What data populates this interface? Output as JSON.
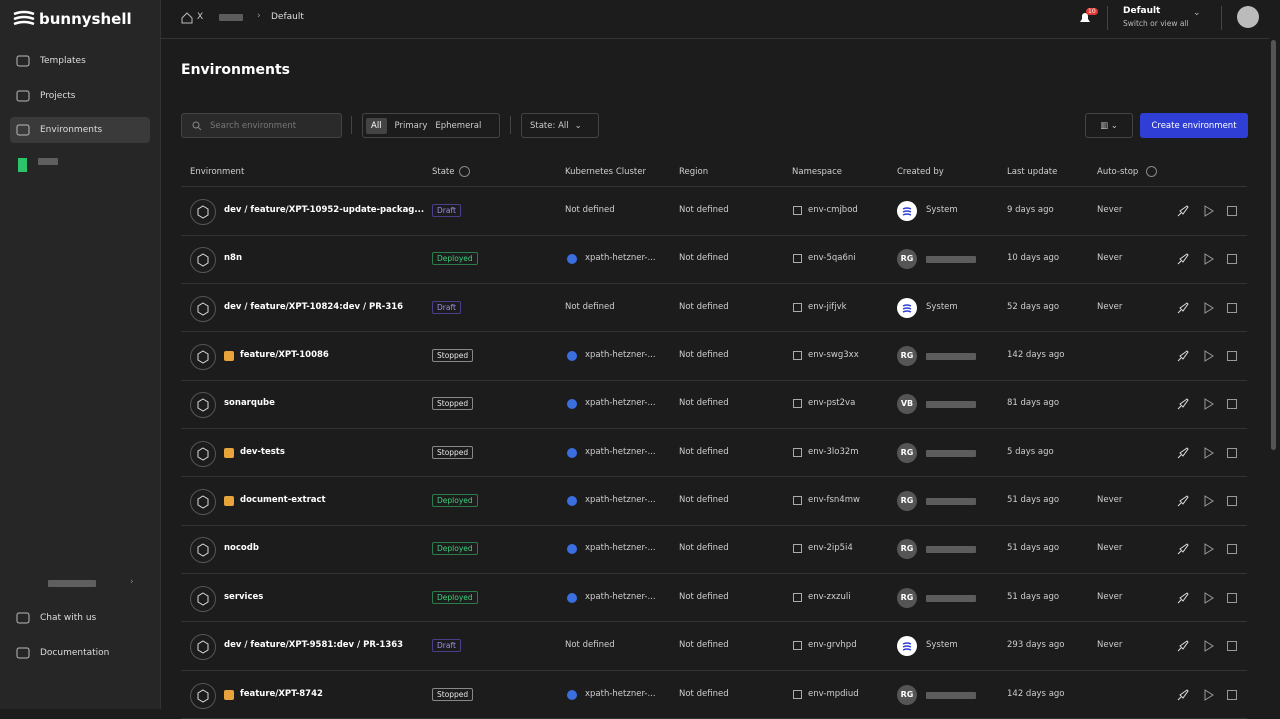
{
  "sidebar": {
    "logo": "bunnyshell",
    "nav": [
      "Templates",
      "Projects",
      "Environments"
    ],
    "active": 2,
    "footer": [
      "Chat with us",
      "Documentation"
    ]
  },
  "topbar": {
    "breadcrumb": [
      "X",
      "Default"
    ],
    "notifications": "10",
    "context": {
      "title": "Default",
      "subtitle": "Switch or view all"
    }
  },
  "page": {
    "title": "Environments",
    "search_placeholder": "Search environment",
    "filters": [
      "All",
      "Primary",
      "Ephemeral"
    ],
    "state_filter": "State: All",
    "create_button": "Create environment"
  },
  "table": {
    "columns": [
      "Environment",
      "State",
      "Kubernetes Cluster",
      "Region",
      "Namespace",
      "Created by",
      "Last update",
      "Auto-stop"
    ],
    "rows": [
      {
        "name": "dev / feature/XPT-10952-update-packag...",
        "state": "Draft",
        "cluster": "Not defined",
        "region": "Not defined",
        "namespace": "env-cmjbod",
        "creator": "System",
        "updated": "9 days ago",
        "autostop": "Never"
      },
      {
        "name": "n8n",
        "state": "Deployed",
        "cluster": "xpath-hetzner-...",
        "region": "Not defined",
        "namespace": "env-5qa6ni",
        "avatar": "RG",
        "updated": "10 days ago",
        "autostop": "Never"
      },
      {
        "name": "dev / feature/XPT-10824:dev / PR-316",
        "state": "Draft",
        "cluster": "Not defined",
        "region": "Not defined",
        "namespace": "env-jifjvk",
        "creator": "System",
        "updated": "52 days ago",
        "autostop": "Never"
      },
      {
        "name": "feature/XPT-10086",
        "flagged": true,
        "state": "Stopped",
        "cluster": "xpath-hetzner-...",
        "region": "Not defined",
        "namespace": "env-swg3xx",
        "avatar": "RG",
        "updated": "142 days ago"
      },
      {
        "name": "sonarqube",
        "state": "Stopped",
        "cluster": "xpath-hetzner-...",
        "region": "Not defined",
        "namespace": "env-pst2va",
        "avatar": "VB",
        "updated": "81 days ago"
      },
      {
        "name": "dev-tests",
        "flagged": true,
        "state": "Stopped",
        "cluster": "xpath-hetzner-...",
        "region": "Not defined",
        "namespace": "env-3lo32m",
        "avatar": "RG",
        "updated": "5 days ago"
      },
      {
        "name": "document-extract",
        "flagged": true,
        "state": "Deployed",
        "cluster": "xpath-hetzner-...",
        "region": "Not defined",
        "namespace": "env-fsn4mw",
        "avatar": "RG",
        "updated": "51 days ago",
        "autostop": "Never"
      },
      {
        "name": "nocodb",
        "state": "Deployed",
        "cluster": "xpath-hetzner-...",
        "region": "Not defined",
        "namespace": "env-2ip5i4",
        "avatar": "RG",
        "updated": "51 days ago",
        "autostop": "Never"
      },
      {
        "name": "services",
        "state": "Deployed",
        "cluster": "xpath-hetzner-...",
        "region": "Not defined",
        "namespace": "env-zxzuli",
        "avatar": "RG",
        "updated": "51 days ago",
        "autostop": "Never"
      },
      {
        "name": "dev / feature/XPT-9581:dev / PR-1363",
        "state": "Draft",
        "cluster": "Not defined",
        "region": "Not defined",
        "namespace": "env-grvhpd",
        "creator": "System",
        "updated": "293 days ago",
        "autostop": "Never"
      },
      {
        "name": "feature/XPT-8742",
        "flagged": true,
        "state": "Stopped",
        "cluster": "xpath-hetzner-...",
        "region": "Not defined",
        "namespace": "env-mpdiud",
        "avatar": "RG",
        "updated": "142 days ago"
      }
    ]
  }
}
